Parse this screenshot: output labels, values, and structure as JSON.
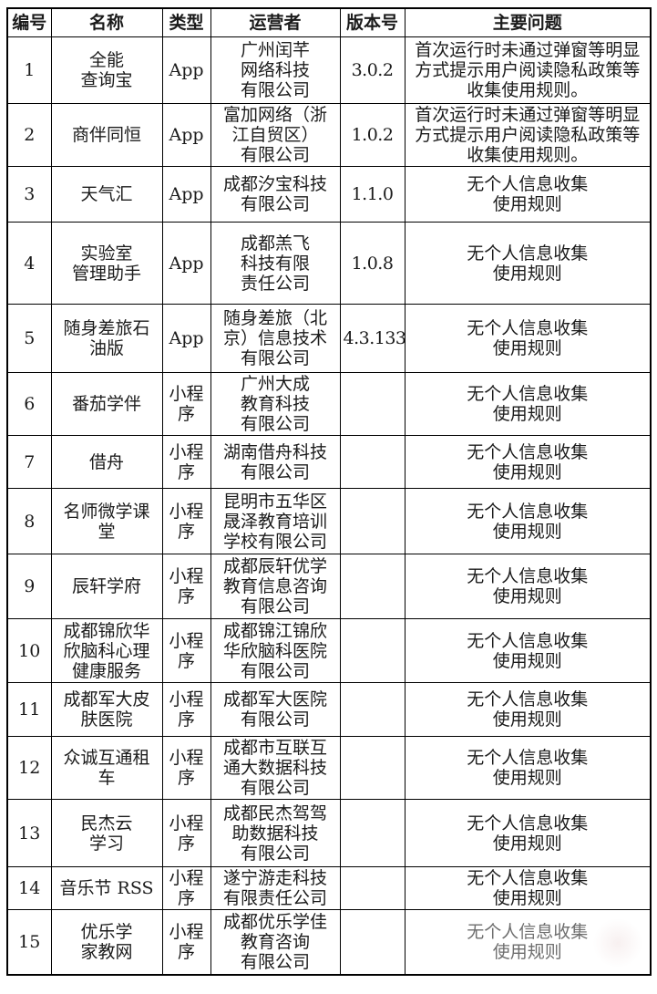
{
  "colors": {
    "border": "#000000",
    "text": "#1b1b1b",
    "faded_text": "#6e6e6e"
  },
  "table": {
    "headers": [
      "编号",
      "名称",
      "类型",
      "运营者",
      "版本号",
      "主要问题"
    ],
    "rows": [
      {
        "id": "1",
        "name": "全能\n查询宝",
        "type": "App",
        "operator": "广州闰芊\n网络科技\n有限公司",
        "version": "3.0.2",
        "issue": "首次运行时未通过弹窗等明显\n方式提示用户阅读隐私政策等\n收集使用规则。"
      },
      {
        "id": "2",
        "name": "商伴同恒",
        "type": "App",
        "operator": "富加网络（浙\n江自贸区）\n有限公司",
        "version": "1.0.2",
        "issue": "首次运行时未通过弹窗等明显\n方式提示用户阅读隐私政策等\n收集使用规则。"
      },
      {
        "id": "3",
        "name": "天气汇",
        "type": "App",
        "operator": "成都汐宝科技\n有限公司",
        "version": "1.1.0",
        "issue": "无个人信息收集\n使用规则"
      },
      {
        "id": "4",
        "name": "实验室\n管理助手",
        "type": "App",
        "operator": "成都羔飞\n科技有限\n责任公司",
        "version": "1.0.8",
        "issue": "无个人信息收集\n使用规则"
      },
      {
        "id": "5",
        "name": "随身差旅石\n油版",
        "type": "App",
        "operator": "随身差旅（北\n京）信息技术\n有限公司",
        "version": "4.3.133",
        "issue": "无个人信息收集\n使用规则"
      },
      {
        "id": "6",
        "name": "番茄学伴",
        "type": "小程\n序",
        "operator": "广州大成\n教育科技\n有限公司",
        "version": "",
        "issue": "无个人信息收集\n使用规则"
      },
      {
        "id": "7",
        "name": "借舟",
        "type": "小程\n序",
        "operator": "湖南借舟科技\n有限公司",
        "version": "",
        "issue": "无个人信息收集\n使用规则"
      },
      {
        "id": "8",
        "name": "名师微学课\n堂",
        "type": "小程\n序",
        "operator": "昆明市五华区\n晟泽教育培训\n学校有限公司",
        "version": "",
        "issue": "无个人信息收集\n使用规则"
      },
      {
        "id": "9",
        "name": "辰轩学府",
        "type": "小程\n序",
        "operator": "成都辰轩优学\n教育信息咨询\n有限公司",
        "version": "",
        "issue": "无个人信息收集\n使用规则"
      },
      {
        "id": "10",
        "name": "成都锦欣华\n欣脑科心理\n健康服务",
        "type": "小程\n序",
        "operator": "成都锦江锦欣\n华欣脑科医院\n有限公司",
        "version": "",
        "issue": "无个人信息收集\n使用规则"
      },
      {
        "id": "11",
        "name": "成都军大皮\n肤医院",
        "type": "小程\n序",
        "operator": "成都军大医院\n有限公司",
        "version": "",
        "issue": "无个人信息收集\n使用规则"
      },
      {
        "id": "12",
        "name": "众诚互通租\n车",
        "type": "小程\n序",
        "operator": "成都市互联互\n通大数据科技\n有限公司",
        "version": "",
        "issue": "无个人信息收集\n使用规则"
      },
      {
        "id": "13",
        "name": "民杰云\n学习",
        "type": "小程\n序",
        "operator": "成都民杰驾驾\n助数据科技\n有限公司",
        "version": "",
        "issue": "无个人信息收集\n使用规则"
      },
      {
        "id": "14",
        "name": "音乐节 RSS",
        "type": "小程\n序",
        "operator": "遂宁游走科技\n有限责任公司",
        "version": "",
        "issue": "无个人信息收集\n使用规则"
      },
      {
        "id": "15",
        "name": "优乐学\n家教网",
        "type": "小程\n序",
        "operator": "成都优乐学佳\n教育咨询\n有限公司",
        "version": "",
        "issue": "无个人信息收集\n使用规则"
      }
    ]
  }
}
